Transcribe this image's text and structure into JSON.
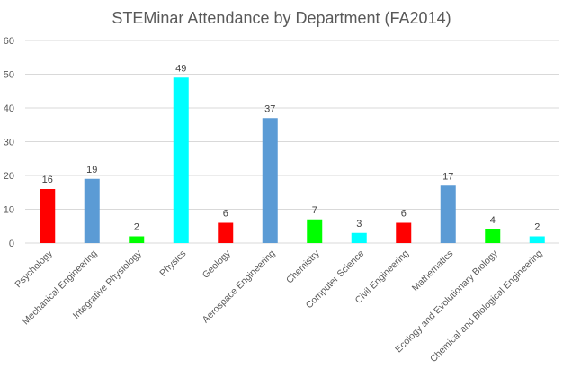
{
  "chart_data": {
    "type": "bar",
    "title": "STEMinar Attendance by Department (FA2014)",
    "xlabel": "",
    "ylabel": "",
    "ylim": [
      0,
      60
    ],
    "yticks": [
      0,
      10,
      20,
      30,
      40,
      50,
      60
    ],
    "grid": true,
    "legend": "none",
    "categories": [
      "Psychology",
      "Mechanical Engineering",
      "Integrative Physiology",
      "Physics",
      "Geology",
      "Aerospace Engineering",
      "Chemistry",
      "Computer Science",
      "Civil Engineering",
      "Mathematics",
      "Ecology and Evolutionary Biology",
      "Chemical and Biological Engineering"
    ],
    "values": [
      16,
      19,
      2,
      49,
      6,
      37,
      7,
      3,
      6,
      17,
      4,
      2
    ],
    "bar_colors": [
      "#ff0000",
      "#5b9bd5",
      "#00ff00",
      "#00ffff",
      "#ff0000",
      "#5b9bd5",
      "#00ff00",
      "#00ffff",
      "#ff0000",
      "#5b9bd5",
      "#00ff00",
      "#00ffff"
    ],
    "gridline_color": "#d9d9d9"
  }
}
